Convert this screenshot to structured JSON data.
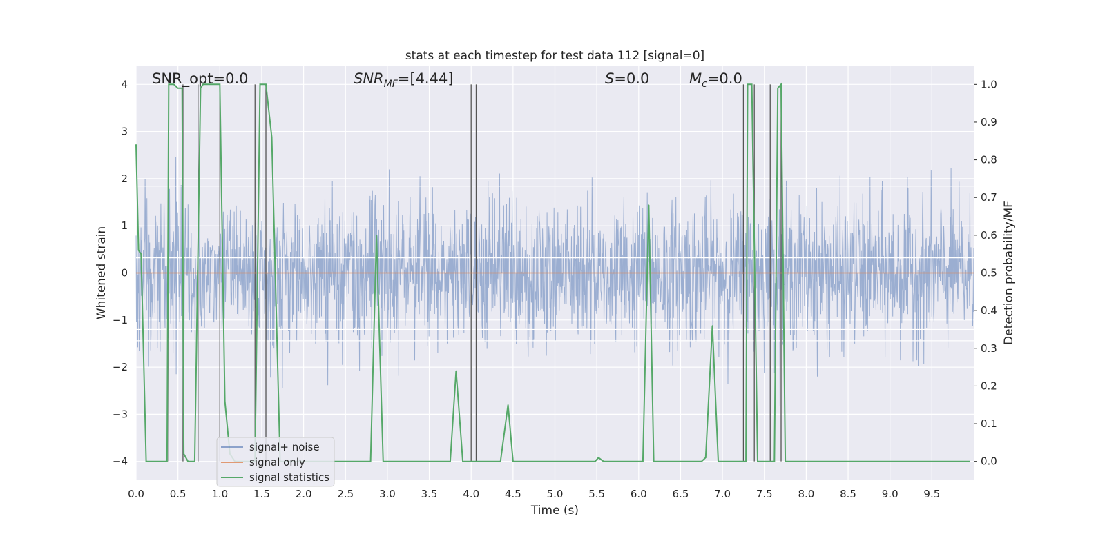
{
  "chart_data": {
    "type": "line",
    "title": "stats at each timestep for test data 112 [signal=0]",
    "xlabel": "Time (s)",
    "ylabel": "Whitened strain",
    "ylabel_right": "Detection probability/MF",
    "xlim": [
      0,
      10
    ],
    "ylim": [
      -4.4,
      4.4
    ],
    "ylim_right": [
      -0.05,
      1.05
    ],
    "grid": true,
    "x_ticks": [
      "0.0",
      "0.5",
      "1.0",
      "1.5",
      "2.0",
      "2.5",
      "3.0",
      "3.5",
      "4.0",
      "4.5",
      "5.0",
      "5.5",
      "6.0",
      "6.5",
      "7.0",
      "7.5",
      "8.0",
      "8.5",
      "9.0",
      "9.5"
    ],
    "y_ticks": [
      "4",
      "3",
      "2",
      "1",
      "0",
      "−1",
      "−2",
      "−3",
      "−4"
    ],
    "y_right_ticks": [
      "1.0",
      "0.9",
      "0.8",
      "0.7",
      "0.6",
      "0.5",
      "0.4",
      "0.3",
      "0.2",
      "0.1",
      "0.0"
    ],
    "annotations": {
      "snr_opt": "SNR_opt=0.0",
      "snr_mf_sym": "SNR",
      "snr_mf_sub": "MF",
      "snr_mf_val": "=[4.44]",
      "s_sym": "S",
      "s_val": "=0.0",
      "mc_sym": "M",
      "mc_sub": "c",
      "mc_val": "=0.0"
    },
    "legend": {
      "placement": "lower-left",
      "entries": [
        "signal+ noise",
        "signal only",
        "signal statistics"
      ]
    },
    "series": [
      {
        "name": "signal+ noise",
        "color": "#4c72b0",
        "description_values": {
          "std": 0.75,
          "min": -3.6,
          "max": 4.0
        }
      },
      {
        "name": "signal only",
        "color": "#dd8452",
        "x": [
          0,
          10
        ],
        "y": [
          0,
          0
        ]
      },
      {
        "name": "signal statistics",
        "color": "#55a868",
        "x": [
          0.0,
          0.03,
          0.06,
          0.12,
          0.18,
          0.25,
          0.37,
          0.39,
          0.42,
          0.45,
          0.5,
          0.55,
          0.57,
          0.62,
          0.7,
          0.77,
          0.8,
          0.85,
          0.92,
          1.0,
          1.06,
          1.12,
          1.18,
          1.24,
          1.3,
          1.42,
          1.48,
          1.55,
          1.62,
          1.72,
          1.78,
          1.85,
          2.0,
          2.5,
          2.8,
          2.87,
          2.95,
          3.0,
          3.5,
          3.75,
          3.82,
          3.9,
          4.0,
          4.06,
          4.1,
          4.35,
          4.44,
          4.5,
          5.0,
          5.48,
          5.52,
          5.58,
          6.05,
          6.12,
          6.18,
          6.5,
          6.75,
          6.8,
          6.88,
          6.95,
          7.2,
          7.28,
          7.3,
          7.35,
          7.42,
          7.6,
          7.62,
          7.66,
          7.7,
          7.75,
          8.0,
          9.0,
          9.95
        ],
        "y": [
          0.84,
          0.56,
          0.55,
          0.0,
          0.0,
          0.0,
          0.0,
          1.0,
          1.0,
          1.0,
          0.99,
          0.99,
          0.02,
          0.0,
          0.0,
          0.99,
          1.0,
          1.0,
          1.0,
          1.0,
          0.16,
          0.02,
          0.0,
          0.0,
          0.0,
          0.0,
          1.0,
          1.0,
          0.86,
          0.0,
          0.0,
          0.0,
          0.0,
          0.0,
          0.0,
          0.6,
          0.0,
          0.0,
          0.0,
          0.0,
          0.24,
          0.0,
          0.0,
          0.0,
          0.0,
          0.0,
          0.15,
          0.0,
          0.0,
          0.0,
          0.01,
          0.0,
          0.0,
          0.68,
          0.0,
          0.0,
          0.0,
          0.01,
          0.36,
          0.0,
          0.0,
          0.0,
          1.0,
          1.0,
          0.0,
          0.0,
          0.0,
          0.99,
          1.0,
          0.0,
          0.0,
          0.0,
          0.0
        ]
      }
    ],
    "vlines_x": [
      0.39,
      0.56,
      0.74,
      1.0,
      1.42,
      1.55,
      4.0,
      4.06,
      7.25,
      7.38,
      7.57,
      7.7
    ],
    "hlines_right": [
      0.73,
      0.54,
      0.35,
      0.32
    ]
  }
}
